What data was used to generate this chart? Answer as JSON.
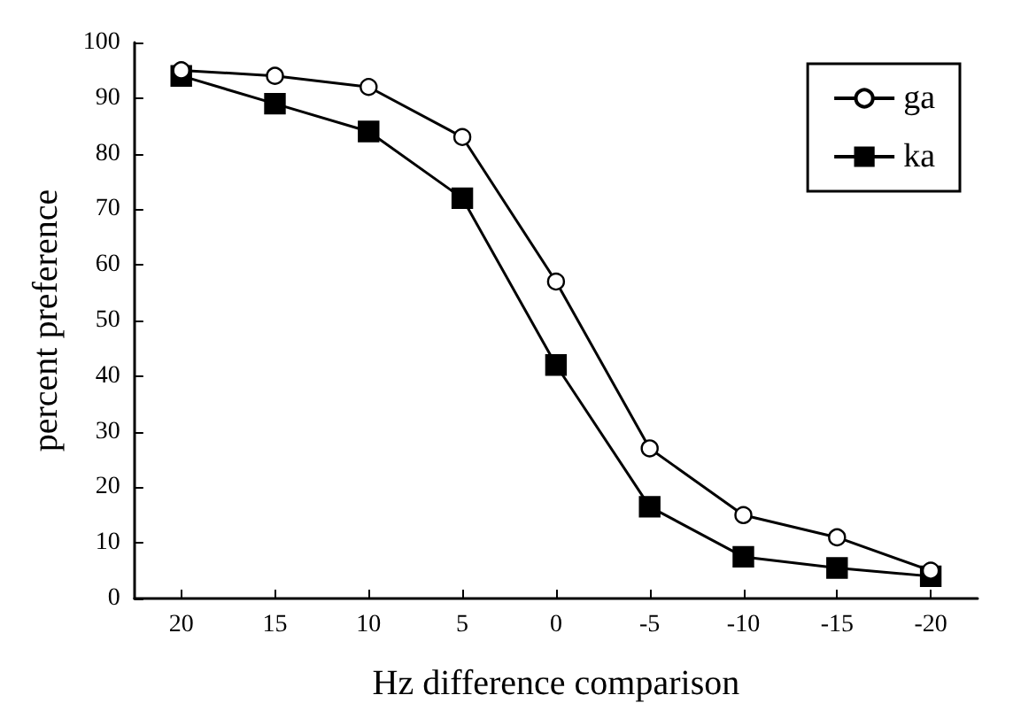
{
  "chart_data": {
    "type": "line",
    "xlabel": "Hz difference comparison",
    "ylabel": "percent preference",
    "categories": [
      "20",
      "15",
      "10",
      "5",
      "0",
      "-5",
      "-10",
      "-15",
      "-20"
    ],
    "series": [
      {
        "name": "ga",
        "color": "#000000",
        "marker": "circle",
        "values": [
          95,
          94,
          92,
          83,
          57,
          27,
          15,
          11,
          5
        ]
      },
      {
        "name": "ka",
        "color": "#000000",
        "marker": "square",
        "values": [
          94,
          89,
          84,
          72,
          42,
          16.5,
          7.5,
          5.5,
          4
        ]
      }
    ],
    "ylim": [
      0,
      100
    ],
    "yticks": [
      0,
      10,
      20,
      30,
      40,
      50,
      60,
      70,
      80,
      90,
      100
    ],
    "grid": false,
    "legend": "top right",
    "line_style": "solid"
  }
}
